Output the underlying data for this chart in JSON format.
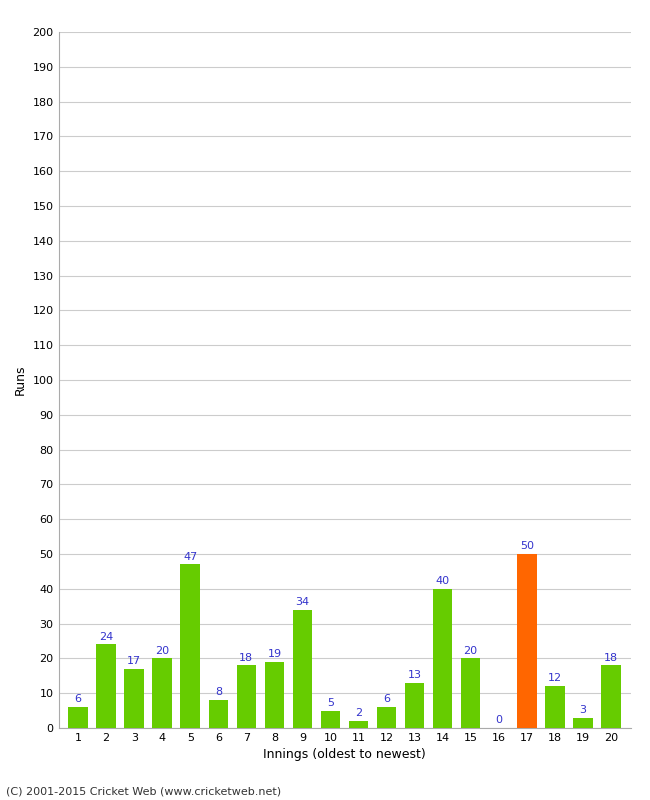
{
  "xlabel": "Innings (oldest to newest)",
  "ylabel": "Runs",
  "innings": [
    1,
    2,
    3,
    4,
    5,
    6,
    7,
    8,
    9,
    10,
    11,
    12,
    13,
    14,
    15,
    16,
    17,
    18,
    19,
    20
  ],
  "values": [
    6,
    24,
    17,
    20,
    47,
    8,
    18,
    19,
    34,
    5,
    2,
    6,
    13,
    40,
    20,
    0,
    50,
    12,
    3,
    18
  ],
  "colors": [
    "#66cc00",
    "#66cc00",
    "#66cc00",
    "#66cc00",
    "#66cc00",
    "#66cc00",
    "#66cc00",
    "#66cc00",
    "#66cc00",
    "#66cc00",
    "#66cc00",
    "#66cc00",
    "#66cc00",
    "#66cc00",
    "#66cc00",
    "#66cc00",
    "#ff6600",
    "#66cc00",
    "#66cc00",
    "#66cc00"
  ],
  "ylim": [
    0,
    200
  ],
  "yticks": [
    0,
    10,
    20,
    30,
    40,
    50,
    60,
    70,
    80,
    90,
    100,
    110,
    120,
    130,
    140,
    150,
    160,
    170,
    180,
    190,
    200
  ],
  "label_color": "#3333cc",
  "footer": "(C) 2001-2015 Cricket Web (www.cricketweb.net)",
  "background_color": "#ffffff",
  "grid_color": "#cccccc"
}
